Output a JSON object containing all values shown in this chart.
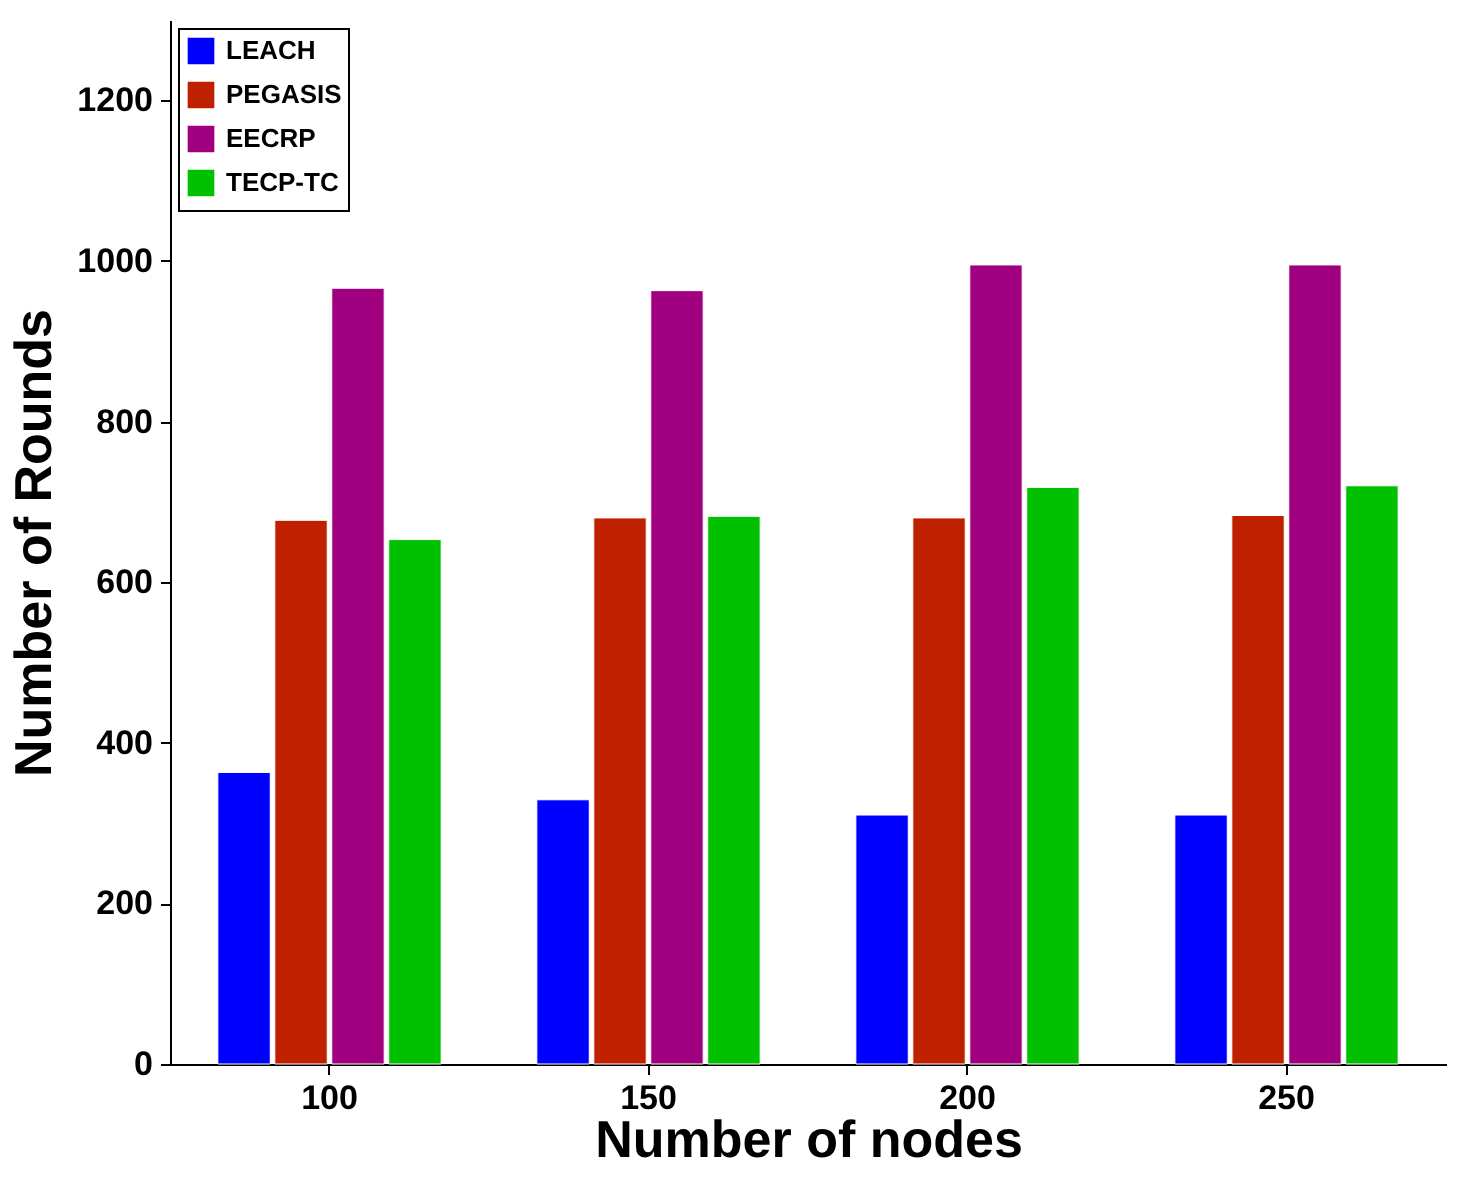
{
  "chart_data": {
    "type": "bar",
    "xlabel": "Number of nodes",
    "ylabel": "Number of Rounds",
    "categories": [
      "100",
      "150",
      "200",
      "250"
    ],
    "series": [
      {
        "name": "LEACH",
        "color": "#0000ff",
        "values": [
          363,
          329,
          310,
          310
        ]
      },
      {
        "name": "PEGASIS",
        "color": "#bf2000",
        "values": [
          677,
          680,
          680,
          683
        ]
      },
      {
        "name": "EECRP",
        "color": "#a0007f",
        "values": [
          966,
          963,
          995,
          995
        ]
      },
      {
        "name": "TECP-TC",
        "color": "#00c000",
        "values": [
          653,
          682,
          718,
          720
        ]
      }
    ],
    "ylim": [
      0,
      1300
    ],
    "yticks": [
      0,
      200,
      400,
      600,
      800,
      1000,
      1200
    ],
    "grid": false,
    "legend": "top left"
  }
}
